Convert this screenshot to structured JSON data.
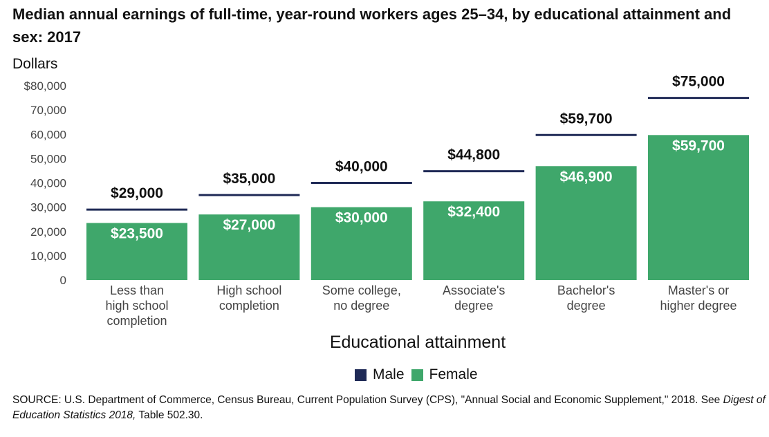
{
  "chart_data": {
    "type": "bar",
    "title": "Median annual earnings of full-time, year-round workers ages 25–34, by educational attainment and sex: 2017",
    "ylabel": "Dollars",
    "xlabel": "Educational attainment",
    "ylim": [
      0,
      80000
    ],
    "yticks": [
      "0",
      "10,000",
      "20,000",
      "30,000",
      "40,000",
      "50,000",
      "60,000",
      "70,000",
      "$80,000"
    ],
    "ytick_values": [
      0,
      10000,
      20000,
      30000,
      40000,
      50000,
      60000,
      70000,
      80000
    ],
    "categories": [
      [
        "Less than",
        "high school",
        "completion"
      ],
      [
        "High school",
        "completion"
      ],
      [
        "Some college,",
        "no degree"
      ],
      [
        "Associate's",
        "degree"
      ],
      [
        "Bachelor's",
        "degree"
      ],
      [
        "Master's or",
        "higher degree"
      ]
    ],
    "series": [
      {
        "name": "Male",
        "color": "#1f2a56",
        "marker": "line",
        "values": [
          29000,
          35000,
          40000,
          44800,
          59700,
          75000
        ],
        "labels": [
          "$29,000",
          "$35,000",
          "$40,000",
          "$44,800",
          "$59,700",
          "$75,000"
        ]
      },
      {
        "name": "Female",
        "color": "#3fa76b",
        "marker": "bar",
        "values": [
          23500,
          27000,
          30000,
          32400,
          46900,
          59700
        ],
        "labels": [
          "$23,500",
          "$27,000",
          "$30,000",
          "$32,400",
          "$46,900",
          "$59,700"
        ]
      }
    ],
    "legend": "bottom-center",
    "grid": false
  },
  "source": {
    "prefix": "SOURCE: U.S. Department of Commerce, Census Bureau, Current Population Survey (CPS), \"Annual Social and Economic Supplement,\" 2018. See ",
    "italic": "Digest of Education Statistics 2018,",
    "suffix": " Table 502.30."
  }
}
